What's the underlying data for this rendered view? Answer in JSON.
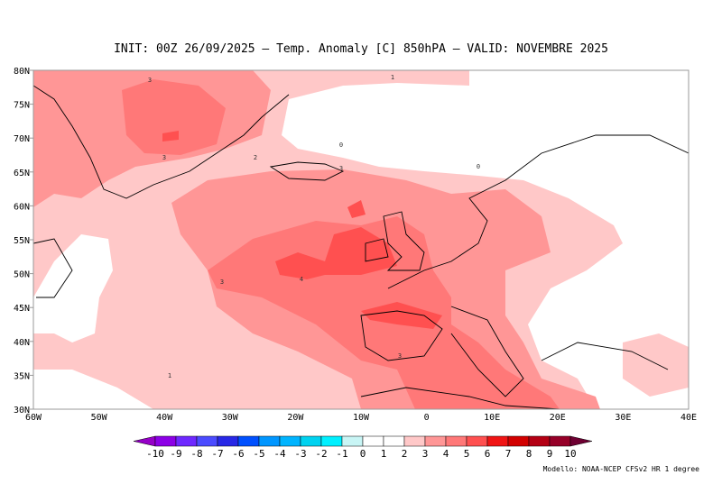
{
  "header": {
    "title": "INIT: 00Z 26/09/2025 – Temp. Anomaly [C] 850hPA – VALID: NOVEMBRE 2025"
  },
  "map": {
    "lat_labels": [
      "80N",
      "75N",
      "70N",
      "65N",
      "60N",
      "55N",
      "50N",
      "45N",
      "40N",
      "35N",
      "30N"
    ],
    "lon_labels": [
      "60W",
      "50W",
      "40W",
      "30W",
      "20W",
      "10W",
      "0",
      "10E",
      "20E",
      "30E",
      "40E"
    ],
    "contour_labels": [
      "3",
      "3",
      "2",
      "3",
      "1",
      "0",
      "0",
      "4",
      "3",
      "3",
      "1"
    ]
  },
  "colorbar": {
    "labels": [
      "-10",
      "-9",
      "-8",
      "-7",
      "-6",
      "-5",
      "-4",
      "-3",
      "-2",
      "-1",
      "0",
      "1",
      "2",
      "3",
      "4",
      "5",
      "6",
      "7",
      "8",
      "9",
      "10"
    ],
    "colors": [
      "#9600c8",
      "#8c00e6",
      "#6e28ff",
      "#4b4bff",
      "#2828e6",
      "#0050ff",
      "#0096ff",
      "#00b4ff",
      "#00d2f0",
      "#00f0ff",
      "#c8f5f5",
      "#ffffff",
      "#ffffff",
      "#ffc8c8",
      "#ff9696",
      "#ff7878",
      "#ff5050",
      "#f01414",
      "#d20000",
      "#b40014",
      "#960028",
      "#6e0032"
    ]
  },
  "footer": {
    "source": "Modello: NOAA-NCEP CFSv2 HR 1 degree"
  }
}
